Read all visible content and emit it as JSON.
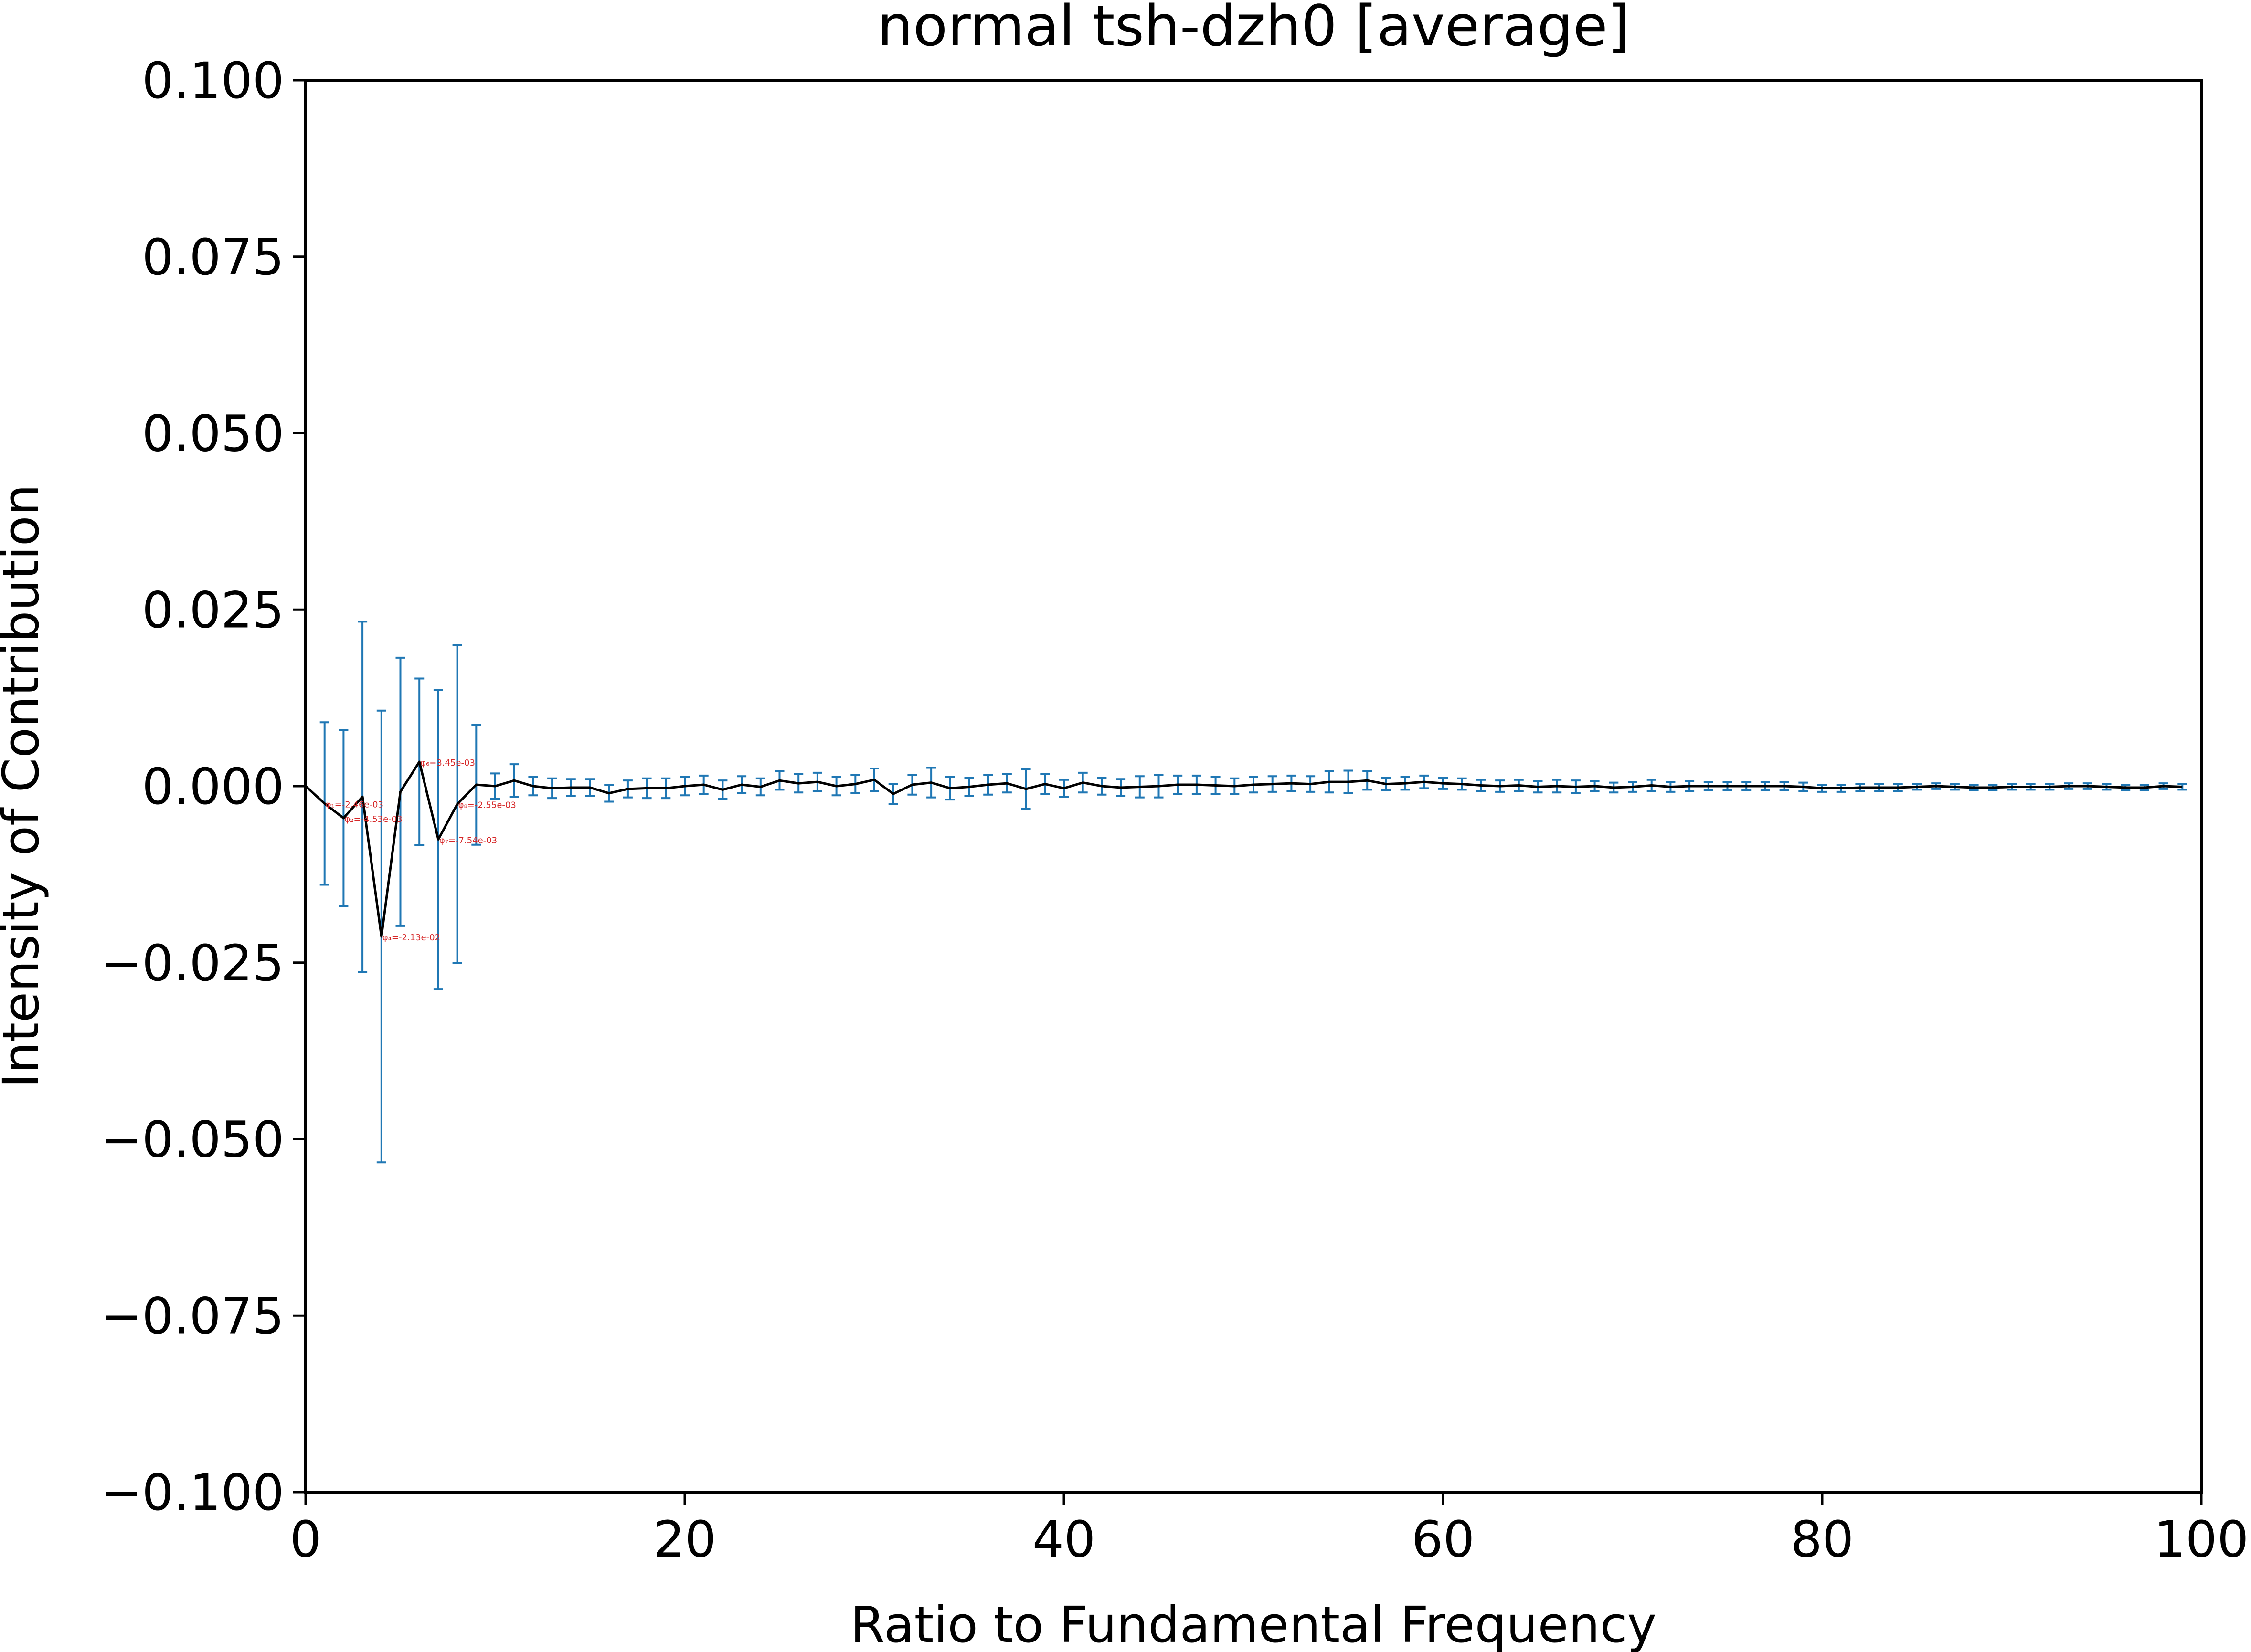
{
  "chart_data": {
    "type": "line",
    "title": "normal tsh-dzh0 [average]",
    "xlabel": "Ratio to Fundamental Frequency",
    "ylabel": "Intensity of Contribution",
    "xlim": [
      0,
      100
    ],
    "ylim": [
      -0.1,
      0.1
    ],
    "grid": false,
    "xticks": [
      0,
      20,
      40,
      60,
      80,
      100
    ],
    "yticks": [
      0.1,
      0.075,
      0.05,
      0.025,
      0.0,
      -0.025,
      -0.05,
      -0.075,
      -0.1
    ],
    "xtick_labels": [
      "0",
      "20",
      "40",
      "60",
      "80",
      "100"
    ],
    "ytick_labels": [
      "0.100",
      "0.075",
      "0.050",
      "0.025",
      "0.000",
      "−0.025",
      "−0.050",
      "−0.075",
      "−0.100"
    ],
    "colors": {
      "line": "#000000",
      "errorbar": "#1f77b4",
      "annotation": "#d62728"
    },
    "series": [
      {
        "x": [
          0,
          1,
          2,
          3,
          4,
          5,
          6,
          7,
          8,
          9,
          10,
          11,
          12,
          13,
          14,
          15,
          16,
          17,
          18,
          19,
          20,
          21,
          22,
          23,
          24,
          25,
          26,
          27,
          28,
          29,
          30,
          31,
          32,
          33,
          34,
          35,
          36,
          37,
          38,
          39,
          40,
          41,
          42,
          43,
          44,
          45,
          46,
          47,
          48,
          49,
          50,
          51,
          52,
          53,
          54,
          55,
          56,
          57,
          58,
          59,
          60,
          61,
          62,
          63,
          64,
          65,
          66,
          67,
          68,
          69,
          70,
          71,
          72,
          73,
          74,
          75,
          76,
          77,
          78,
          79,
          80,
          81,
          82,
          83,
          84,
          85,
          86,
          87,
          88,
          89,
          90,
          91,
          92,
          93,
          94,
          95,
          96,
          97,
          98,
          99
        ],
        "y": [
          0.0,
          -0.00246,
          -0.00453,
          -0.0015,
          -0.0213,
          -0.0008,
          0.00345,
          -0.00754,
          -0.00255,
          0.0002,
          0.0,
          0.0008,
          0.0,
          -0.0003,
          -0.0002,
          -0.0002,
          -0.001,
          -0.0004,
          -0.0003,
          -0.0003,
          0.0,
          0.0002,
          -0.0005,
          0.0002,
          -0.0001,
          0.0008,
          0.0004,
          0.0006,
          0.0,
          0.0003,
          0.0009,
          -0.0011,
          0.0002,
          0.0005,
          -0.0003,
          -0.0001,
          0.0002,
          0.0004,
          -0.0004,
          0.0003,
          -0.0003,
          0.0005,
          0.0,
          -0.0002,
          -0.0001,
          0.0,
          0.0002,
          0.0002,
          0.0001,
          0.0,
          0.0002,
          0.0003,
          0.0004,
          0.0003,
          0.0006,
          0.0006,
          0.0008,
          0.0003,
          0.0004,
          0.0006,
          0.0004,
          0.0003,
          0.0001,
          0.0,
          0.0001,
          -0.0001,
          0.0,
          -0.0001,
          0.0,
          -0.0002,
          -0.0001,
          0.0001,
          -0.0001,
          0.0,
          0.0,
          0.0,
          0.0,
          0.0,
          0.0,
          -0.0001,
          -0.0003,
          -0.0003,
          -0.0002,
          -0.0002,
          -0.0002,
          -0.0001,
          0.0,
          -0.0001,
          -0.0002,
          -0.0002,
          -0.0001,
          -0.0001,
          -0.0001,
          0.0,
          0.0,
          -0.0001,
          -0.0002,
          -0.0002,
          0.0,
          -0.0001
        ],
        "err": [
          0.0,
          0.0115,
          0.0125,
          0.0248,
          0.032,
          0.019,
          0.0118,
          0.0212,
          0.0225,
          0.0085,
          0.0018,
          0.0023,
          0.0013,
          0.0014,
          0.0012,
          0.0012,
          0.0012,
          0.0012,
          0.0014,
          0.0014,
          0.0013,
          0.0013,
          0.0013,
          0.0012,
          0.0012,
          0.0013,
          0.0013,
          0.0013,
          0.0013,
          0.0013,
          0.0016,
          0.0014,
          0.0014,
          0.0021,
          0.0016,
          0.0013,
          0.0014,
          0.0013,
          0.0028,
          0.0014,
          0.0012,
          0.0014,
          0.0012,
          0.0012,
          0.0015,
          0.0016,
          0.0013,
          0.0013,
          0.0012,
          0.0011,
          0.0011,
          0.0011,
          0.0011,
          0.0011,
          0.0015,
          0.0016,
          0.0013,
          0.0009,
          0.0009,
          0.0009,
          0.0008,
          0.0008,
          0.0008,
          0.0008,
          0.0008,
          0.0008,
          0.0009,
          0.0009,
          0.0007,
          0.0007,
          0.0007,
          0.0008,
          0.0007,
          0.0007,
          0.0006,
          0.0006,
          0.0006,
          0.0006,
          0.0006,
          0.0006,
          0.0005,
          0.0005,
          0.0005,
          0.0005,
          0.0005,
          0.0004,
          0.0004,
          0.0004,
          0.0004,
          0.0004,
          0.0004,
          0.0004,
          0.0004,
          0.0004,
          0.0004,
          0.0004,
          0.0004,
          0.0004,
          0.0004,
          0.0004
        ]
      }
    ],
    "annotations": [
      {
        "x": 1,
        "y": -0.00246,
        "text": "φ₁=-2.46e-03"
      },
      {
        "x": 2,
        "y": -0.00453,
        "text": "φ₂=-4.53e-03"
      },
      {
        "x": 4,
        "y": -0.0213,
        "text": "φ₄=-2.13e-02"
      },
      {
        "x": 6,
        "y": 0.00345,
        "text": "φ₆=3.45e-03"
      },
      {
        "x": 7,
        "y": -0.00754,
        "text": "φ₇=-7.54e-03"
      },
      {
        "x": 8,
        "y": -0.00255,
        "text": "φ₈=-2.55e-03"
      }
    ]
  }
}
